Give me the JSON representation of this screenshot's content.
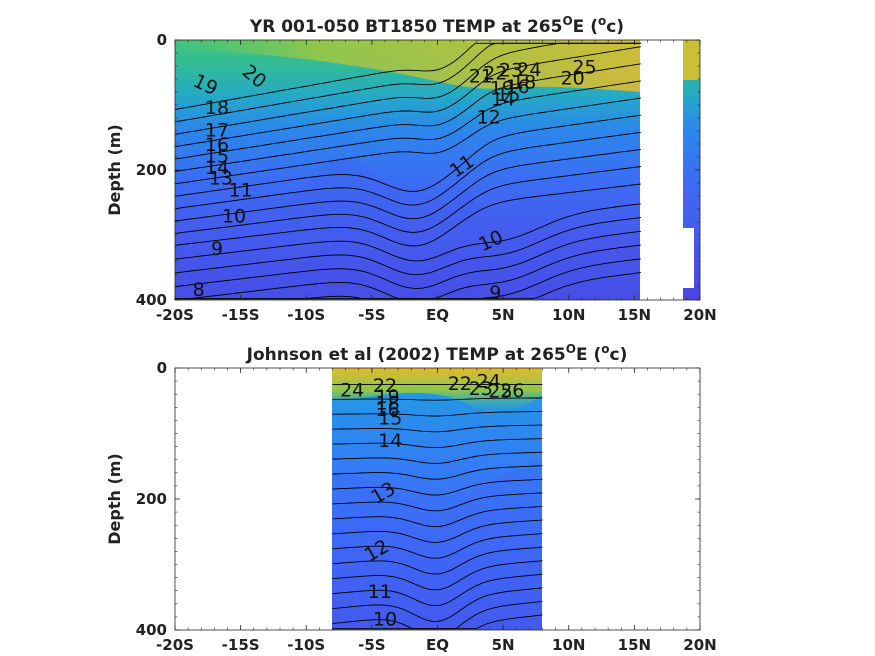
{
  "chart_data": [
    {
      "type": "heatmap",
      "title_main": "YR 001-050 BT1850 TEMP at 265",
      "title_sup": "O",
      "title_tail": "E (",
      "title_unit_sup": "o",
      "title_end": "c)",
      "ylabel": "Depth (m)",
      "xlabel": "",
      "xlim": [
        -20,
        20
      ],
      "ylim": [
        400,
        0
      ],
      "x_ticks": [
        -20,
        -15,
        -10,
        -5,
        0,
        5,
        10,
        15,
        20
      ],
      "x_tick_labels": [
        "-20S",
        "-15S",
        "-10S",
        "-5S",
        "EQ",
        "5N",
        "10N",
        "15N",
        "20N"
      ],
      "y_ticks": [
        0,
        200,
        400
      ],
      "y_tick_labels": [
        "0",
        "200",
        "400"
      ],
      "data_extent": [
        -20,
        15.5
      ],
      "contour_levels": [
        8,
        9,
        10,
        11,
        12,
        13,
        14,
        15,
        16,
        17,
        18,
        19,
        20,
        21,
        22,
        23,
        24,
        25
      ],
      "contour_labels": [
        {
          "text": "19",
          "x": -17.7,
          "depth": 70,
          "rot": 25
        },
        {
          "text": "20",
          "x": -14.0,
          "depth": 57,
          "rot": 40
        },
        {
          "text": "18",
          "x": -16.8,
          "depth": 105,
          "rot": 0
        },
        {
          "text": "17",
          "x": -16.8,
          "depth": 140,
          "rot": 0
        },
        {
          "text": "16",
          "x": -16.8,
          "depth": 162,
          "rot": 0
        },
        {
          "text": "15",
          "x": -16.8,
          "depth": 180,
          "rot": 0
        },
        {
          "text": "14",
          "x": -16.8,
          "depth": 198,
          "rot": 0
        },
        {
          "text": "13",
          "x": -16.5,
          "depth": 214,
          "rot": 0
        },
        {
          "text": "11",
          "x": -15.0,
          "depth": 232,
          "rot": 0
        },
        {
          "text": "10",
          "x": -15.5,
          "depth": 272,
          "rot": 0
        },
        {
          "text": "9",
          "x": -16.8,
          "depth": 322,
          "rot": 0
        },
        {
          "text": "8",
          "x": -18.2,
          "depth": 385,
          "rot": 0
        },
        {
          "text": "11",
          "x": 1.9,
          "depth": 195,
          "rot": -35
        },
        {
          "text": "12",
          "x": 3.9,
          "depth": 120,
          "rot": 0
        },
        {
          "text": "10",
          "x": 4.1,
          "depth": 310,
          "rot": -25
        },
        {
          "text": "9",
          "x": 4.4,
          "depth": 390,
          "rot": 0
        },
        {
          "text": "21",
          "x": 3.3,
          "depth": 57,
          "rot": 0
        },
        {
          "text": "22",
          "x": 4.4,
          "depth": 52,
          "rot": 0
        },
        {
          "text": "23",
          "x": 5.6,
          "depth": 48,
          "rot": 0
        },
        {
          "text": "24",
          "x": 7.0,
          "depth": 47,
          "rot": 0
        },
        {
          "text": "25",
          "x": 11.2,
          "depth": 43,
          "rot": 0
        },
        {
          "text": "20",
          "x": 10.3,
          "depth": 60,
          "rot": 0
        },
        {
          "text": "19",
          "x": 4.9,
          "depth": 75,
          "rot": 0
        },
        {
          "text": "16",
          "x": 6.1,
          "depth": 73,
          "rot": 0
        },
        {
          "text": "18",
          "x": 6.6,
          "depth": 66,
          "rot": 0
        },
        {
          "text": "15",
          "x": 5.4,
          "depth": 85,
          "rot": 0
        },
        {
          "text": "14",
          "x": 5.0,
          "depth": 92,
          "rot": 0
        }
      ]
    },
    {
      "type": "heatmap",
      "title_main": "Johnson et al (2002) TEMP at 265",
      "title_sup": "O",
      "title_tail": "E (",
      "title_unit_sup": "o",
      "title_end": "c)",
      "ylabel": "Depth (m)",
      "xlabel": "",
      "xlim": [
        -20,
        20
      ],
      "ylim": [
        400,
        0
      ],
      "x_ticks": [
        -20,
        -15,
        -10,
        -5,
        0,
        5,
        10,
        15,
        20
      ],
      "x_tick_labels": [
        "-20S",
        "-15S",
        "-10S",
        "-5S",
        "EQ",
        "5N",
        "10N",
        "15N",
        "20N"
      ],
      "y_ticks": [
        0,
        200,
        400
      ],
      "y_tick_labels": [
        "0",
        "200",
        "400"
      ],
      "data_extent": [
        -8,
        8
      ],
      "contour_levels": [
        10,
        11,
        12,
        13,
        14,
        15,
        16,
        17,
        18,
        19,
        20,
        21,
        22,
        23,
        24,
        25,
        26,
        27
      ],
      "contour_labels": [
        {
          "text": "24",
          "x": -6.5,
          "depth": 35,
          "rot": 0
        },
        {
          "text": "22",
          "x": -4.0,
          "depth": 28,
          "rot": 0
        },
        {
          "text": "19",
          "x": -3.8,
          "depth": 45,
          "rot": 0
        },
        {
          "text": "18",
          "x": -3.8,
          "depth": 55,
          "rot": 0
        },
        {
          "text": "16",
          "x": -3.8,
          "depth": 65,
          "rot": 0
        },
        {
          "text": "15",
          "x": -3.6,
          "depth": 78,
          "rot": 0
        },
        {
          "text": "14",
          "x": -3.6,
          "depth": 112,
          "rot": 0
        },
        {
          "text": "13",
          "x": -4.1,
          "depth": 192,
          "rot": -30
        },
        {
          "text": "12",
          "x": -4.6,
          "depth": 280,
          "rot": -30
        },
        {
          "text": "11",
          "x": -4.4,
          "depth": 343,
          "rot": 0
        },
        {
          "text": "10",
          "x": -4.0,
          "depth": 385,
          "rot": 0
        },
        {
          "text": "22",
          "x": 1.7,
          "depth": 25,
          "rot": 0
        },
        {
          "text": "23",
          "x": 3.3,
          "depth": 33,
          "rot": 0
        },
        {
          "text": "24",
          "x": 3.9,
          "depth": 21,
          "rot": 0
        },
        {
          "text": "25",
          "x": 4.8,
          "depth": 37,
          "rot": 0
        },
        {
          "text": "26",
          "x": 5.7,
          "depth": 36,
          "rot": 0
        }
      ]
    }
  ]
}
